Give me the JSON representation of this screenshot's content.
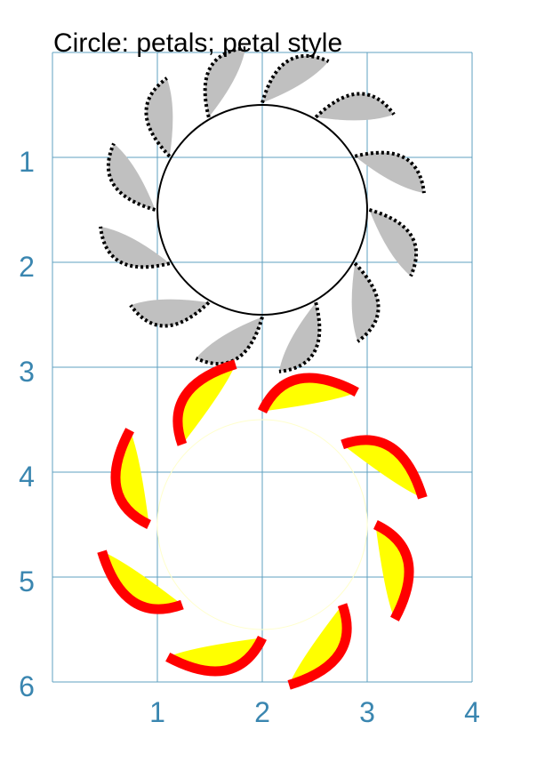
{
  "title": "Circle: petals; petal style",
  "axis": {
    "x_ticks": [
      "1",
      "2",
      "3",
      "4"
    ],
    "y_ticks": [
      "1",
      "2",
      "3",
      "4",
      "5",
      "6"
    ],
    "xlim": [
      0,
      4
    ],
    "ylim": [
      0,
      6
    ],
    "y_direction": "down",
    "grid": true,
    "grid_color": "#5fa0c0",
    "tick_color": "#3a86b0"
  },
  "shapes": [
    {
      "name": "circle-gray-petals",
      "cx": 2,
      "cy": 1.5,
      "r": 1,
      "circle_stroke": "#000000",
      "petal_count": 12,
      "petal_fill": "#c0c0c0",
      "petal_stroke": "#000000",
      "petal_line": "dotted"
    },
    {
      "name": "circle-red-petals",
      "cx": 2,
      "cy": 4.5,
      "r": 1,
      "circle_stroke": "#ffffcc",
      "petal_count": 8,
      "petal_fill": "#ffff00",
      "petal_stroke": "#ff0000",
      "petal_line": "solid"
    }
  ]
}
